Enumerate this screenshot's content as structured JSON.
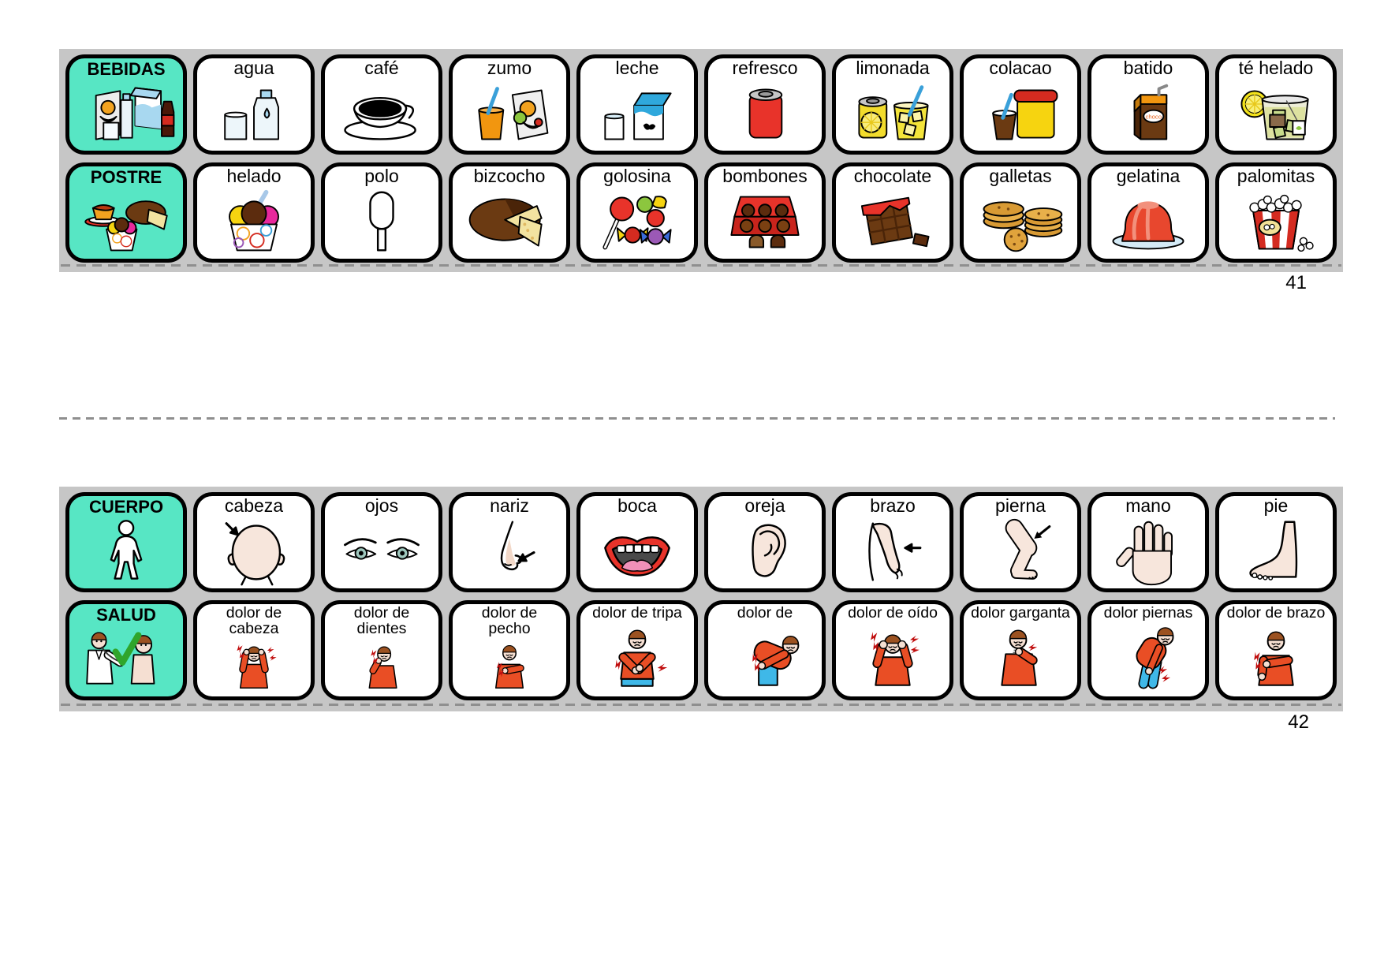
{
  "page": {
    "background": "#FFFFFF",
    "strip_background": "#C6C6C6",
    "category_color": "#57E6C4",
    "card_border_color": "#000000"
  },
  "strips": [
    {
      "page_number": "41",
      "rows": [
        {
          "category": {
            "label": "BEBIDAS",
            "icon": "bebidas-icon"
          },
          "cells": [
            {
              "label": "agua",
              "icon": "agua-icon"
            },
            {
              "label": "café",
              "icon": "cafe-icon"
            },
            {
              "label": "zumo",
              "icon": "zumo-icon"
            },
            {
              "label": "leche",
              "icon": "leche-icon"
            },
            {
              "label": "refresco",
              "icon": "refresco-icon"
            },
            {
              "label": "limonada",
              "icon": "limonada-icon"
            },
            {
              "label": "colacao",
              "icon": "colacao-icon"
            },
            {
              "label": "batido",
              "icon": "batido-icon"
            },
            {
              "label": "té helado",
              "icon": "te-helado-icon"
            }
          ]
        },
        {
          "category": {
            "label": "POSTRE",
            "icon": "postre-icon"
          },
          "cells": [
            {
              "label": "helado",
              "icon": "helado-icon"
            },
            {
              "label": "polo",
              "icon": "polo-icon"
            },
            {
              "label": "bizcocho",
              "icon": "bizcocho-icon"
            },
            {
              "label": "golosina",
              "icon": "golosina-icon"
            },
            {
              "label": "bombones",
              "icon": "bombones-icon"
            },
            {
              "label": "chocolate",
              "icon": "chocolate-icon"
            },
            {
              "label": "galletas",
              "icon": "galletas-icon"
            },
            {
              "label": "gelatina",
              "icon": "gelatina-icon"
            },
            {
              "label": "palomitas",
              "icon": "palomitas-icon"
            }
          ]
        }
      ]
    },
    {
      "page_number": "42",
      "rows": [
        {
          "category": {
            "label": "CUERPO",
            "icon": "cuerpo-icon"
          },
          "cells": [
            {
              "label": "cabeza",
              "icon": "cabeza-icon"
            },
            {
              "label": "ojos",
              "icon": "ojos-icon"
            },
            {
              "label": "nariz",
              "icon": "nariz-icon"
            },
            {
              "label": "boca",
              "icon": "boca-icon"
            },
            {
              "label": "oreja",
              "icon": "oreja-icon"
            },
            {
              "label": "brazo",
              "icon": "brazo-icon"
            },
            {
              "label": "pierna",
              "icon": "pierna-icon"
            },
            {
              "label": "mano",
              "icon": "mano-icon"
            },
            {
              "label": "pie",
              "icon": "pie-icon"
            }
          ]
        },
        {
          "category": {
            "label": "SALUD",
            "icon": "salud-icon"
          },
          "small_labels": true,
          "cells": [
            {
              "label": "dolor de\ncabeza",
              "icon": "dolor-cabeza-icon"
            },
            {
              "label": "dolor de\ndientes",
              "icon": "dolor-dientes-icon"
            },
            {
              "label": "dolor de\npecho",
              "icon": "dolor-pecho-icon"
            },
            {
              "label": "dolor de tripa",
              "icon": "dolor-tripa-icon"
            },
            {
              "label": "dolor de",
              "icon": "dolor-espalda-icon"
            },
            {
              "label": "dolor de oído",
              "icon": "dolor-oido-icon"
            },
            {
              "label": "dolor garganta",
              "icon": "dolor-garganta-icon"
            },
            {
              "label": "dolor piernas",
              "icon": "dolor-piernas-icon"
            },
            {
              "label": "dolor de brazo",
              "icon": "dolor-brazo-icon"
            }
          ]
        }
      ]
    }
  ]
}
